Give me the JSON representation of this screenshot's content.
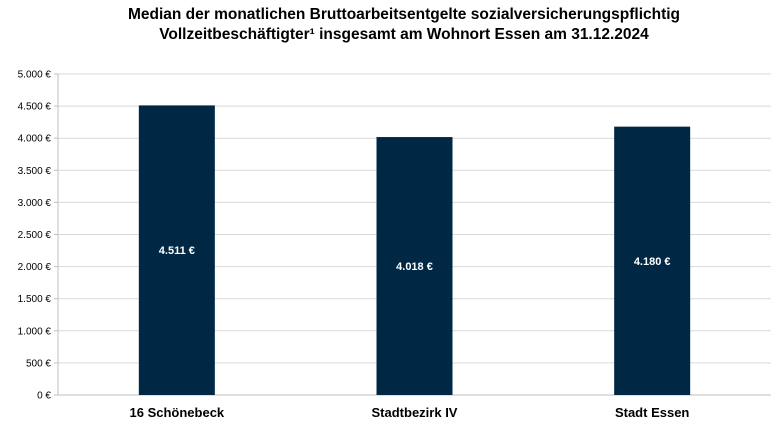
{
  "chart_data": {
    "type": "bar",
    "title_lines": [
      "Median der monatlichen Bruttoarbeitsentgelte sozialversicherungspflichtig",
      "Vollzeitbeschäftigter¹ insgesamt am Wohnort Essen am 31.12.2024"
    ],
    "categories": [
      "16 Schönebeck",
      "Stadtbezirk IV",
      "Stadt Essen"
    ],
    "values": [
      4511,
      4018,
      4180
    ],
    "value_labels": [
      "4.511 €",
      "4.018 €",
      "4.180 €"
    ],
    "ylim": [
      0,
      5000
    ],
    "yticks": [
      0,
      500,
      1000,
      1500,
      2000,
      2500,
      3000,
      3500,
      4000,
      4500,
      5000
    ],
    "ytick_labels": [
      "0 €",
      "500 €",
      "1.000 €",
      "1.500 €",
      "2.000 €",
      "2.500 €",
      "3.000 €",
      "3.500 €",
      "4.000 €",
      "4.500 €",
      "5.000 €"
    ],
    "grid": true,
    "bar_color": "#002845",
    "grid_color": "#d9d9d9"
  }
}
